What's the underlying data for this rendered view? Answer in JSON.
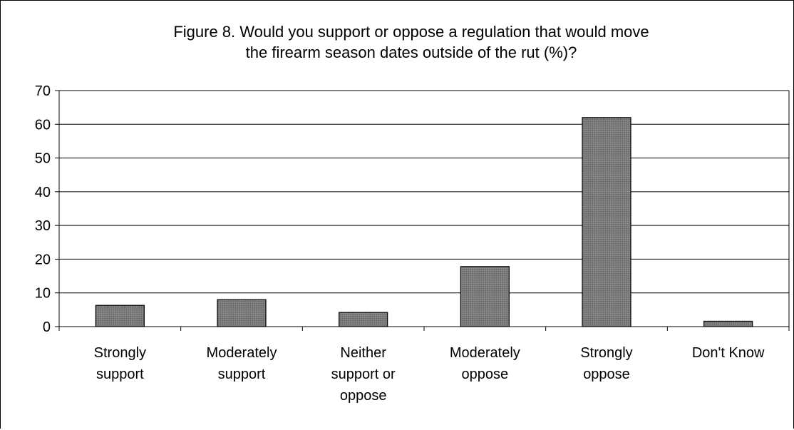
{
  "chart_data": {
    "type": "bar",
    "title_lines": [
      "Figure 8. Would you support or oppose a regulation that would move",
      "the firearm season dates outside of the rut (%)?"
    ],
    "categories": [
      [
        "Strongly",
        "support"
      ],
      [
        "Moderately",
        "support"
      ],
      [
        "Neither",
        "support or",
        "oppose"
      ],
      [
        "Moderately",
        "oppose"
      ],
      [
        "Strongly",
        "oppose"
      ],
      [
        "Don't Know"
      ]
    ],
    "values": [
      6.3,
      8,
      4.2,
      17.8,
      62,
      1.6
    ],
    "ylim": [
      0,
      70
    ],
    "yticks": [
      "0",
      "10",
      "20",
      "30",
      "40",
      "50",
      "60",
      "70"
    ],
    "grid": true,
    "legend": "none",
    "xlabel": "",
    "ylabel": "",
    "colors": {
      "bar": "#7f7f7f",
      "bar_stroke": "#000000",
      "grid": "#000000"
    }
  }
}
